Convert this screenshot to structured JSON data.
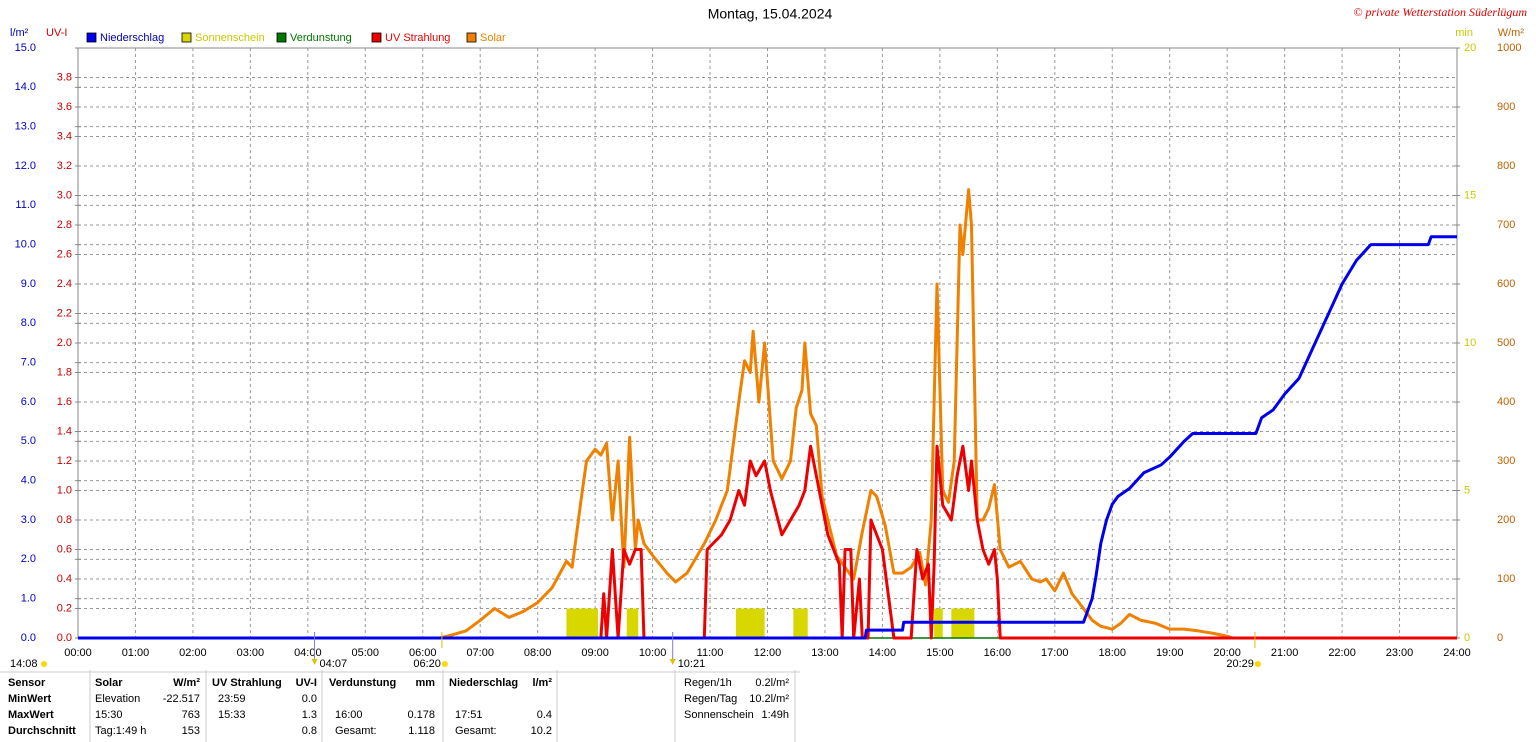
{
  "chart_data": {
    "type": "line",
    "title": "Montag, 15.04.2024",
    "credit": "© private Wetterstation Süderlügum",
    "axis_units": {
      "y": "l/m²",
      "uv": "UV-I",
      "min": "min",
      "w": "W/m²"
    },
    "xlim": [
      0,
      24
    ],
    "xticks": [
      {
        "value": 0,
        "label": "00:00"
      },
      {
        "value": 1,
        "label": "01:00"
      },
      {
        "value": 2,
        "label": "02:00"
      },
      {
        "value": 3,
        "label": "03:00"
      },
      {
        "value": 4,
        "label": "04:00"
      },
      {
        "value": 5,
        "label": "05:00"
      },
      {
        "value": 6,
        "label": "06:00"
      },
      {
        "value": 7,
        "label": "07:00"
      },
      {
        "value": 8,
        "label": "08:00"
      },
      {
        "value": 9,
        "label": "09:00"
      },
      {
        "value": 10,
        "label": "10:00"
      },
      {
        "value": 11,
        "label": "11:00"
      },
      {
        "value": 12,
        "label": "12:00"
      },
      {
        "value": 13,
        "label": "13:00"
      },
      {
        "value": 14,
        "label": "14:00"
      },
      {
        "value": 15,
        "label": "15:00"
      },
      {
        "value": 16,
        "label": "16:00"
      },
      {
        "value": 17,
        "label": "17:00"
      },
      {
        "value": 18,
        "label": "18:00"
      },
      {
        "value": 19,
        "label": "19:00"
      },
      {
        "value": 20,
        "label": "20:00"
      },
      {
        "value": 21,
        "label": "21:00"
      },
      {
        "value": 22,
        "label": "22:00"
      },
      {
        "value": 23,
        "label": "23:00"
      },
      {
        "value": 24,
        "label": "24:00"
      }
    ],
    "ylim": [
      0,
      15
    ],
    "yticks": [
      {
        "value": 0,
        "label": "0.0"
      },
      {
        "value": 1,
        "label": "1.0"
      },
      {
        "value": 2,
        "label": "2.0"
      },
      {
        "value": 3,
        "label": "3.0"
      },
      {
        "value": 4,
        "label": "4.0"
      },
      {
        "value": 5,
        "label": "5.0"
      },
      {
        "value": 6,
        "label": "6.0"
      },
      {
        "value": 7,
        "label": "7.0"
      },
      {
        "value": 8,
        "label": "8.0"
      },
      {
        "value": 9,
        "label": "9.0"
      },
      {
        "value": 10,
        "label": "10.0"
      },
      {
        "value": 11,
        "label": "11.0"
      },
      {
        "value": 12,
        "label": "12.0"
      },
      {
        "value": 13,
        "label": "13.0"
      },
      {
        "value": 14,
        "label": "14.0"
      },
      {
        "value": 15,
        "label": "15.0"
      }
    ],
    "uvlim": [
      0,
      4
    ],
    "uvticks": [
      {
        "value": 0,
        "label": "0.0"
      },
      {
        "value": 0.2,
        "label": "0.2"
      },
      {
        "value": 0.4,
        "label": "0.4"
      },
      {
        "value": 0.6,
        "label": "0.6"
      },
      {
        "value": 0.8,
        "label": "0.8"
      },
      {
        "value": 1,
        "label": "1.0"
      },
      {
        "value": 1.2,
        "label": "1.2"
      },
      {
        "value": 1.4,
        "label": "1.4"
      },
      {
        "value": 1.6,
        "label": "1.6"
      },
      {
        "value": 1.8,
        "label": "1.8"
      },
      {
        "value": 2,
        "label": "2.0"
      },
      {
        "value": 2.2,
        "label": "2.2"
      },
      {
        "value": 2.4,
        "label": "2.4"
      },
      {
        "value": 2.6,
        "label": "2.6"
      },
      {
        "value": 2.8,
        "label": "2.8"
      },
      {
        "value": 3,
        "label": "3.0"
      },
      {
        "value": 3.2,
        "label": "3.2"
      },
      {
        "value": 3.4,
        "label": "3.4"
      },
      {
        "value": 3.6,
        "label": "3.6"
      },
      {
        "value": 3.8,
        "label": "3.8"
      }
    ],
    "minlim": [
      0,
      20
    ],
    "minticks": [
      0,
      5,
      10,
      15,
      20
    ],
    "wlim": [
      0,
      1000
    ],
    "wticks": [
      0,
      100,
      200,
      300,
      400,
      500,
      600,
      700,
      800,
      900,
      1000
    ],
    "axis_colors": {
      "y": "#0000cc",
      "uv": "#cc0000",
      "min": "#c8c800",
      "w": "#c06000"
    },
    "grid": true,
    "series": [
      {
        "name": "Niederschlag",
        "color": "#0000ee",
        "axis": "y",
        "kind": "line",
        "x": [
          0,
          13.7,
          13.72,
          14.35,
          14.37,
          17.5,
          17.55,
          17.65,
          17.72,
          17.8,
          17.9,
          18.0,
          18.1,
          18.3,
          18.55,
          18.85,
          19.0,
          19.25,
          19.4,
          20.5,
          20.6,
          20.8,
          21.0,
          21.25,
          21.5,
          21.75,
          22.0,
          22.25,
          22.5,
          22.75,
          23.5,
          23.55,
          24
        ],
        "values": [
          0,
          0,
          0.2,
          0.2,
          0.4,
          0.4,
          0.6,
          1.0,
          1.6,
          2.4,
          3.0,
          3.4,
          3.6,
          3.8,
          4.2,
          4.4,
          4.6,
          5.0,
          5.2,
          5.2,
          5.6,
          5.8,
          6.2,
          6.6,
          7.4,
          8.2,
          9.0,
          9.6,
          10.0,
          10.0,
          10.0,
          10.2,
          10.2
        ]
      },
      {
        "name": "Sonnenschein",
        "color": "#d8d800",
        "axis": "min",
        "kind": "bar",
        "x_start": [
          8.5,
          9.55,
          11.45,
          12.45,
          14.9,
          15.2
        ],
        "x_end": [
          9.05,
          9.75,
          11.95,
          12.7,
          15.05,
          15.6
        ],
        "values": [
          1,
          1,
          1,
          1,
          1,
          1
        ]
      },
      {
        "name": "Verdunstung",
        "color": "#007700",
        "axis": "y",
        "kind": "line",
        "x": [
          0,
          24
        ],
        "values": [
          0,
          0
        ]
      },
      {
        "name": "UV Strahlung",
        "color": "#ee0000",
        "axis": "uv",
        "kind": "line",
        "x": [
          0,
          9.1,
          9.15,
          9.2,
          9.3,
          9.4,
          9.5,
          9.6,
          9.7,
          9.8,
          9.85,
          10.9,
          10.95,
          11.2,
          11.35,
          11.5,
          11.6,
          11.7,
          11.8,
          11.95,
          12.05,
          12.25,
          12.4,
          12.55,
          12.65,
          12.75,
          12.85,
          12.95,
          13.05,
          13.15,
          13.25,
          13.3,
          13.35,
          13.45,
          13.5,
          13.6,
          13.65,
          13.75,
          13.8,
          13.9,
          14.0,
          14.1,
          14.2,
          14.5,
          14.6,
          14.7,
          14.8,
          14.85,
          14.9,
          14.95,
          15.05,
          15.2,
          15.3,
          15.4,
          15.5,
          15.55,
          15.65,
          15.75,
          15.85,
          15.95,
          16.0,
          16.05,
          24
        ],
        "values": [
          0,
          0,
          0.3,
          0,
          0.6,
          0,
          0.6,
          0.5,
          0.6,
          0.6,
          0,
          0,
          0.6,
          0.7,
          0.8,
          1.0,
          0.9,
          1.2,
          1.1,
          1.2,
          1.0,
          0.7,
          0.8,
          0.9,
          1.0,
          1.3,
          1.1,
          0.9,
          0.7,
          0.6,
          0.5,
          0,
          0.6,
          0.6,
          0,
          0.4,
          0,
          0,
          0.8,
          0.7,
          0.6,
          0.3,
          0,
          0,
          0.6,
          0.4,
          0.5,
          0,
          0.5,
          1.3,
          0.9,
          0.8,
          1.1,
          1.3,
          1.0,
          1.2,
          0.8,
          0.6,
          0.5,
          0.6,
          0.4,
          0,
          0
        ]
      },
      {
        "name": "Solar",
        "color": "#f08000",
        "axis": "w",
        "kind": "line",
        "x": [
          0,
          6.3,
          6.5,
          6.75,
          7,
          7.25,
          7.5,
          7.75,
          8,
          8.25,
          8.5,
          8.6,
          8.75,
          8.85,
          9,
          9.1,
          9.2,
          9.3,
          9.4,
          9.5,
          9.6,
          9.7,
          9.75,
          9.85,
          10,
          10.25,
          10.4,
          10.6,
          10.9,
          11.1,
          11.3,
          11.5,
          11.6,
          11.7,
          11.75,
          11.85,
          11.95,
          12.1,
          12.25,
          12.4,
          12.5,
          12.6,
          12.65,
          12.75,
          12.85,
          12.95,
          13.05,
          13.2,
          13.35,
          13.5,
          13.65,
          13.8,
          13.9,
          14.05,
          14.2,
          14.35,
          14.5,
          14.65,
          14.75,
          14.85,
          14.95,
          15.05,
          15.15,
          15.25,
          15.35,
          15.4,
          15.5,
          15.55,
          15.65,
          15.75,
          15.85,
          15.95,
          16.05,
          16.2,
          16.4,
          16.6,
          16.75,
          16.85,
          17,
          17.15,
          17.3,
          17.5,
          17.65,
          17.8,
          18,
          18.15,
          18.3,
          18.5,
          18.75,
          19,
          19.25,
          19.5,
          19.75,
          20,
          20.1
        ],
        "values": [
          0,
          0,
          5,
          12,
          30,
          50,
          35,
          45,
          60,
          85,
          130,
          120,
          230,
          300,
          320,
          310,
          330,
          200,
          300,
          120,
          340,
          150,
          200,
          160,
          140,
          110,
          95,
          110,
          160,
          200,
          250,
          400,
          470,
          450,
          520,
          400,
          500,
          300,
          270,
          300,
          390,
          420,
          500,
          380,
          360,
          240,
          200,
          140,
          120,
          100,
          180,
          250,
          240,
          190,
          110,
          110,
          120,
          145,
          90,
          200,
          600,
          250,
          230,
          300,
          700,
          650,
          760,
          700,
          200,
          200,
          220,
          260,
          150,
          120,
          130,
          100,
          95,
          100,
          80,
          110,
          75,
          50,
          30,
          20,
          15,
          25,
          40,
          30,
          25,
          15,
          15,
          12,
          8,
          3,
          0
        ]
      }
    ],
    "daylength": "14:08",
    "annotations": [
      {
        "x": 4.117,
        "label": "04:07",
        "kind": "triangle"
      },
      {
        "x": 6.333,
        "label": "06:20",
        "kind": "sun"
      },
      {
        "x": 10.35,
        "label": "10:21",
        "kind": "triangle"
      },
      {
        "x": 20.483,
        "label": "20:29",
        "kind": "sun"
      }
    ],
    "stats": {
      "row_labels": [
        "Sensor",
        "MinWert",
        "MaxWert",
        "Durchschnitt"
      ],
      "blocks": [
        {
          "header": [
            "Solar",
            "W/m²"
          ],
          "rows": [
            [
              "Elevation",
              "-22.517"
            ],
            [
              "15:30",
              "763"
            ],
            [
              "Tag:1:49 h",
              "153"
            ]
          ]
        },
        {
          "header": [
            "UV Strahlung",
            "UV-I"
          ],
          "rows": [
            [
              "23:59",
              "0.0"
            ],
            [
              "15:33",
              "1.3"
            ],
            [
              null,
              "0.8"
            ]
          ]
        },
        {
          "header": [
            "Verdunstung",
            "mm"
          ],
          "rows": [
            [
              null,
              null
            ],
            [
              "16:00",
              "0.178"
            ],
            [
              "Gesamt:",
              "1.118"
            ]
          ]
        },
        {
          "header": [
            "Niederschlag",
            "l/m²"
          ],
          "rows": [
            [
              null,
              null
            ],
            [
              "17:51",
              "0.4"
            ],
            [
              "Gesamt:",
              "10.2"
            ]
          ]
        }
      ],
      "summary": [
        [
          "Regen/1h",
          "0.2l/m²"
        ],
        [
          "Regen/Tag",
          "10.2l/m²"
        ],
        [
          "Sonnenschein",
          "1:49h"
        ]
      ]
    }
  }
}
